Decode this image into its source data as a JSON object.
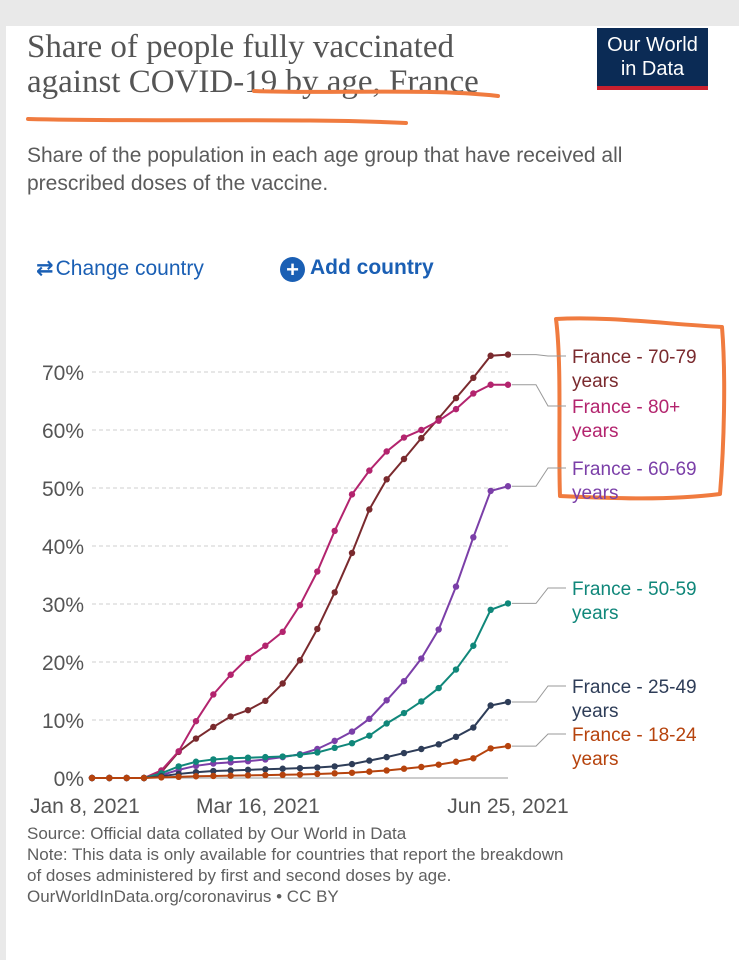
{
  "header": {
    "title": "Share of people fully vaccinated against COVID-19 by age, France",
    "subtitle": "Share of the population in each age group that have received all prescribed doses of the vaccine.",
    "logo_line1": "Our World",
    "logo_line2": "in Data"
  },
  "controls": {
    "change_country": "Change country",
    "add_country": "Add country",
    "change_icon": "swap-arrows-icon",
    "add_icon": "plus-circle-icon"
  },
  "footer": {
    "source": "Source: Official data collated by Our World in Data",
    "note_line1": "Note: This data is only available for countries that report the breakdown",
    "note_line2": "of doses administered by first and second doses by age.",
    "url": "OurWorldInData.org/coronavirus • CC BY"
  },
  "colors": {
    "grid": "#cfcfcf",
    "axis_text": "#555555",
    "annotation": "#f07b3f"
  },
  "chart_data": {
    "type": "line",
    "title": "Share of people fully vaccinated against COVID-19 by age, France",
    "xlabel": "",
    "ylabel": "",
    "x_start": "Jan 8, 2021",
    "x_end": "Jun 25, 2021",
    "xlim_days": [
      0,
      168
    ],
    "ylim": [
      0,
      73
    ],
    "x_ticks": [
      {
        "day": 0,
        "label": "Jan 8, 2021"
      },
      {
        "day": 67,
        "label": "Mar 16, 2021"
      },
      {
        "day": 168,
        "label": "Jun 25, 2021"
      }
    ],
    "y_ticks": [
      {
        "value": 0,
        "label": "0%"
      },
      {
        "value": 10,
        "label": "10%"
      },
      {
        "value": 20,
        "label": "20%"
      },
      {
        "value": 30,
        "label": "30%"
      },
      {
        "value": 40,
        "label": "40%"
      },
      {
        "value": 50,
        "label": "50%"
      },
      {
        "value": 60,
        "label": "60%"
      },
      {
        "value": 70,
        "label": "70%"
      }
    ],
    "series": [
      {
        "name": "France - 70-79 years",
        "label_line1": "France - 70-79",
        "label_line2": "years",
        "color": "#7a2a2e",
        "x": [
          0,
          7,
          14,
          21,
          28,
          35,
          42,
          49,
          56,
          63,
          70,
          77,
          84,
          91,
          98,
          105,
          112,
          119,
          126,
          133,
          140,
          147,
          154,
          161,
          168
        ],
        "y": [
          0,
          0,
          0,
          0,
          1,
          4.5,
          6.8,
          8.8,
          10.6,
          11.7,
          13.3,
          16.3,
          20.3,
          25.7,
          32,
          38.8,
          46.3,
          51.5,
          55,
          58.6,
          62,
          65.5,
          69,
          72.8,
          73
        ]
      },
      {
        "name": "France - 80+ years",
        "label_line1": "France - 80+",
        "label_line2": "years",
        "color": "#b3246e",
        "x": [
          0,
          7,
          14,
          21,
          28,
          35,
          42,
          49,
          56,
          63,
          70,
          77,
          84,
          91,
          98,
          105,
          112,
          119,
          126,
          133,
          140,
          147,
          154,
          161,
          168
        ],
        "y": [
          0,
          0,
          0,
          0,
          1.3,
          4.6,
          9.8,
          14.4,
          17.8,
          20.7,
          22.8,
          25.2,
          29.8,
          35.6,
          42.6,
          48.9,
          53,
          56.3,
          58.7,
          60,
          61.6,
          63.6,
          66.3,
          67.8,
          67.8
        ]
      },
      {
        "name": "France - 60-69 years",
        "label_line1": "France - 60-69",
        "label_line2": "years",
        "color": "#7b3fa8",
        "x": [
          0,
          7,
          14,
          21,
          28,
          35,
          42,
          49,
          56,
          63,
          70,
          77,
          84,
          91,
          98,
          105,
          112,
          119,
          126,
          133,
          140,
          147,
          154,
          161,
          168
        ],
        "y": [
          0,
          0,
          0,
          0,
          0.5,
          1.4,
          2.1,
          2.5,
          2.7,
          2.9,
          3.2,
          3.6,
          4.1,
          5,
          6.4,
          8,
          10.2,
          13.4,
          16.7,
          20.6,
          25.6,
          33,
          41.5,
          49.5,
          50.3
        ]
      },
      {
        "name": "France - 50-59 years",
        "label_line1": "France - 50-59",
        "label_line2": "years",
        "color": "#10877a",
        "x": [
          0,
          7,
          14,
          21,
          28,
          35,
          42,
          49,
          56,
          63,
          70,
          77,
          84,
          91,
          98,
          105,
          112,
          119,
          126,
          133,
          140,
          147,
          154,
          161,
          168
        ],
        "y": [
          0,
          0,
          0,
          0,
          0.8,
          2,
          2.8,
          3.2,
          3.4,
          3.5,
          3.6,
          3.7,
          4,
          4.4,
          5.2,
          6,
          7.3,
          9.4,
          11.2,
          13.2,
          15.5,
          18.7,
          22.8,
          29,
          30.1
        ]
      },
      {
        "name": "France - 25-49 years",
        "label_line1": "France - 25-49",
        "label_line2": "years",
        "color": "#2e3d58",
        "x": [
          0,
          7,
          14,
          21,
          28,
          35,
          42,
          49,
          56,
          63,
          70,
          77,
          84,
          91,
          98,
          105,
          112,
          119,
          126,
          133,
          140,
          147,
          154,
          161,
          168
        ],
        "y": [
          0,
          0,
          0,
          0,
          0.3,
          0.7,
          1,
          1.2,
          1.3,
          1.4,
          1.5,
          1.6,
          1.7,
          1.8,
          2,
          2.4,
          3,
          3.6,
          4.3,
          5,
          5.8,
          7.1,
          8.7,
          12.5,
          13.1
        ]
      },
      {
        "name": "France - 18-24 years",
        "label_line1": "France - 18-24",
        "label_line2": "years",
        "color": "#b6430d",
        "x": [
          0,
          7,
          14,
          21,
          28,
          35,
          42,
          49,
          56,
          63,
          70,
          77,
          84,
          91,
          98,
          105,
          112,
          119,
          126,
          133,
          140,
          147,
          154,
          161,
          168
        ],
        "y": [
          0,
          0,
          0,
          0,
          0.1,
          0.2,
          0.3,
          0.35,
          0.4,
          0.45,
          0.5,
          0.55,
          0.6,
          0.7,
          0.8,
          0.9,
          1.1,
          1.3,
          1.6,
          1.9,
          2.3,
          2.8,
          3.4,
          5.1,
          5.5
        ]
      }
    ]
  }
}
